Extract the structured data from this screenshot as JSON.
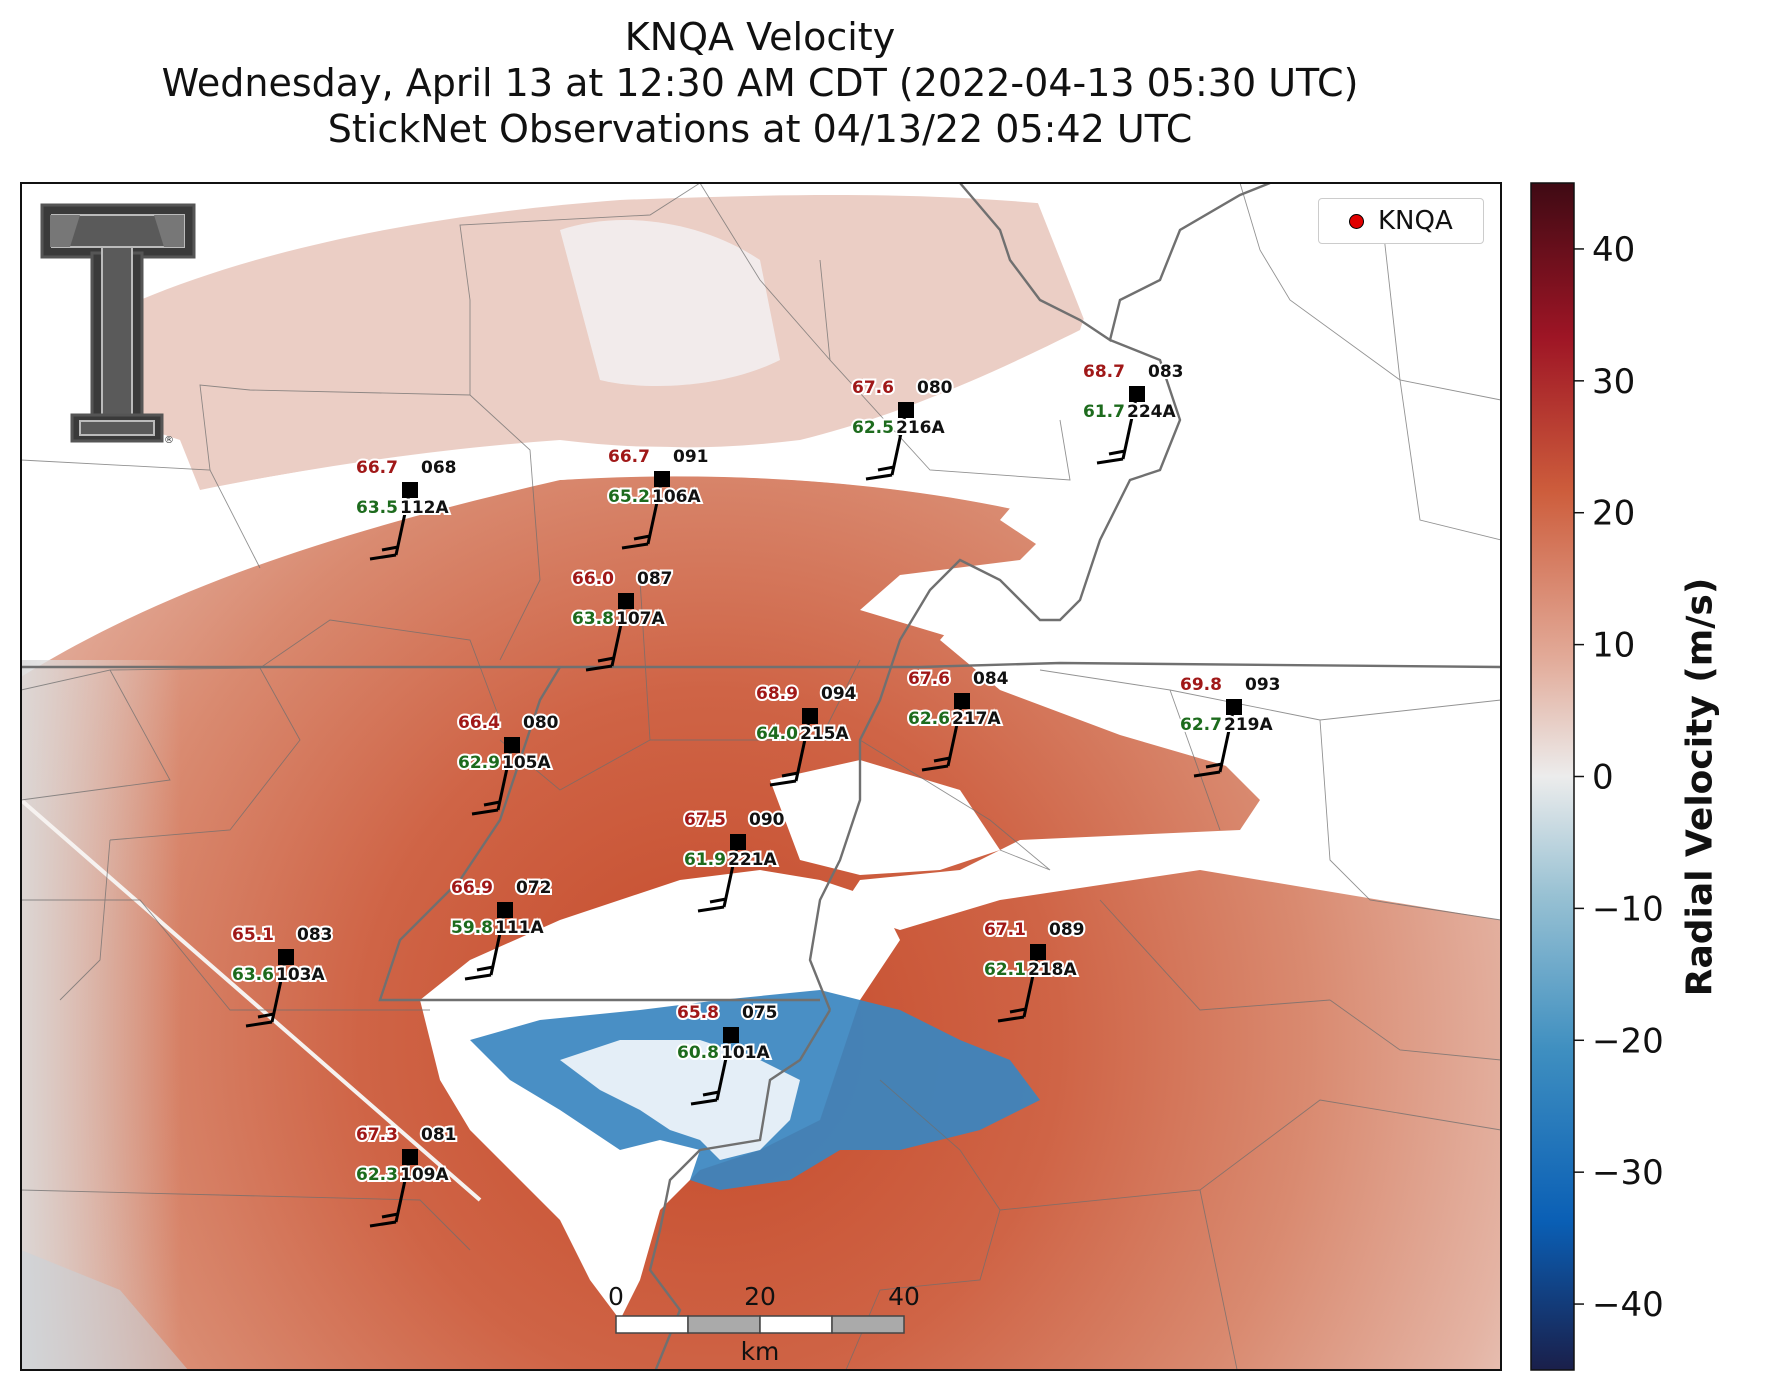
{
  "title": {
    "line1": "KNQA Velocity",
    "line2": "Wednesday, April 13 at 12:30 AM CDT (2022-04-13 05:30 UTC)",
    "line3": "StickNet Observations at 04/13/22 05:42 UTC"
  },
  "legend": {
    "label": "KNQA",
    "marker_color": "#e00000"
  },
  "colorbar": {
    "label": "Radial Velocity (m/s)",
    "min": -45,
    "max": 45,
    "ticks": [
      "40",
      "30",
      "20",
      "10",
      "0",
      "−10",
      "−20",
      "−30",
      "−40"
    ],
    "tick_values": [
      40,
      30,
      20,
      10,
      0,
      -10,
      -20,
      -30,
      -40
    ],
    "colors": [
      "#1a1f4a",
      "#0a5fb5",
      "#3f8fc0",
      "#98c1d3",
      "#ececec",
      "#e2aa98",
      "#cd5d3c",
      "#9e1525",
      "#3f0a14"
    ]
  },
  "scalebar": {
    "labels": [
      "0",
      "20",
      "40"
    ],
    "unit": "km"
  },
  "logo": {
    "name": "Texas Tech double T",
    "mark": "®"
  },
  "stations": [
    {
      "id": "112A",
      "temp": "66.7",
      "dew": "63.5",
      "dir": "068"
    },
    {
      "id": "106A",
      "temp": "66.7",
      "dew": "65.2",
      "dir": "091"
    },
    {
      "id": "216A",
      "temp": "67.6",
      "dew": "62.5",
      "dir": "080"
    },
    {
      "id": "224A",
      "temp": "68.7",
      "dew": "61.7",
      "dir": "083"
    },
    {
      "id": "107A",
      "temp": "66.0",
      "dew": "63.8",
      "dir": "087"
    },
    {
      "id": "215A",
      "temp": "68.9",
      "dew": "64.0",
      "dir": "094"
    },
    {
      "id": "217A",
      "temp": "67.6",
      "dew": "62.6",
      "dir": "084"
    },
    {
      "id": "219A",
      "temp": "69.8",
      "dew": "62.7",
      "dir": "093"
    },
    {
      "id": "105A",
      "temp": "66.4",
      "dew": "62.9",
      "dir": "080"
    },
    {
      "id": "221A",
      "temp": "67.5",
      "dew": "61.9",
      "dir": "090"
    },
    {
      "id": "111A",
      "temp": "66.9",
      "dew": "59.8",
      "dir": "072"
    },
    {
      "id": "103A",
      "temp": "65.1",
      "dew": "63.6",
      "dir": "083"
    },
    {
      "id": "218A",
      "temp": "67.1",
      "dew": "62.1",
      "dir": "089"
    },
    {
      "id": "101A",
      "temp": "65.8",
      "dew": "60.8",
      "dir": "075"
    },
    {
      "id": "109A",
      "temp": "67.3",
      "dew": "62.3",
      "dir": "081"
    }
  ]
}
